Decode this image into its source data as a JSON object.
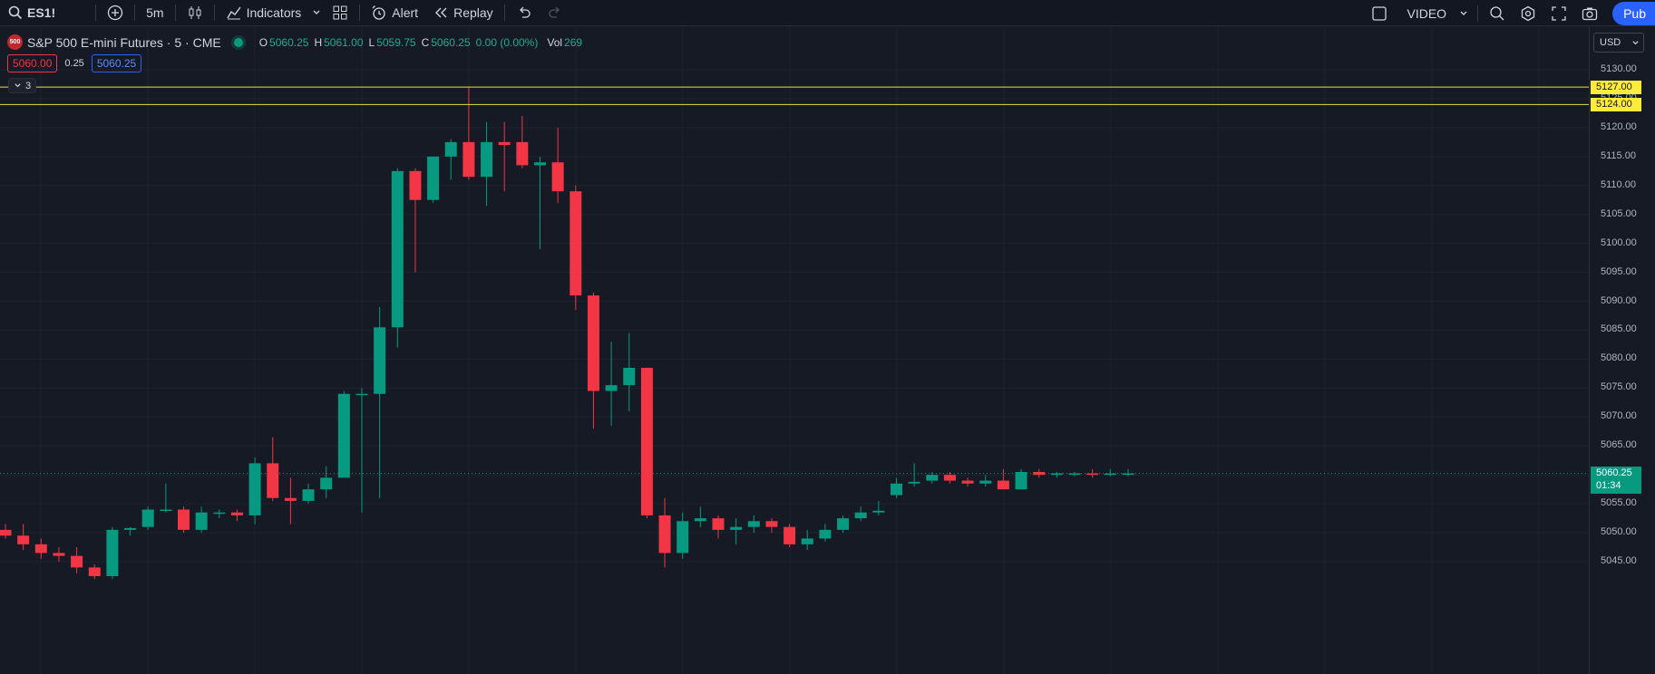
{
  "toolbar": {
    "symbol": "ES1!",
    "interval": "5m",
    "indicators_label": "Indicators",
    "alert_label": "Alert",
    "replay_label": "Replay",
    "layout_name": "VIDEO",
    "publish_label": "Pub"
  },
  "legend": {
    "badge": "500",
    "name": "S&P 500 E-mini Futures · 5 · CME",
    "o_key": "O",
    "o": "5060.25",
    "h_key": "H",
    "h": "5061.00",
    "l_key": "L",
    "l": "5059.75",
    "c_key": "C",
    "c": "5060.25",
    "change": "0.00 (0.00%)",
    "vol_key": "Vol",
    "vol": "269"
  },
  "quote": {
    "bid": "5060.00",
    "spread": "0.25",
    "ask": "5060.25"
  },
  "indicator_group": {
    "count": "3"
  },
  "price_scale": {
    "currency": "USD",
    "ticks": [
      "5130.00",
      "5125.00",
      "5120.00",
      "5115.00",
      "5110.00",
      "5105.00",
      "5100.00",
      "5095.00",
      "5090.00",
      "5085.00",
      "5080.00",
      "5075.00",
      "5070.00",
      "5065.00",
      "5060.00",
      "5055.00",
      "5050.00",
      "5045.00"
    ],
    "lines": [
      {
        "label": "5127.00",
        "price": 5127.0
      },
      {
        "label": "5124.00",
        "price": 5124.0
      }
    ],
    "last_price": "5060.25",
    "countdown": "01:34"
  },
  "colors": {
    "up": "#089981",
    "down": "#f23645",
    "hline": "#e6e03a",
    "background": "#161a25",
    "grid": "#1f2330"
  },
  "candles": [
    [
      5050.5,
      5051.5,
      5049.0,
      5049.5
    ],
    [
      5049.5,
      5051.5,
      5047.0,
      5048.0
    ],
    [
      5048.0,
      5049.0,
      5045.5,
      5046.5
    ],
    [
      5046.5,
      5047.5,
      5045.0,
      5046.0
    ],
    [
      5046.0,
      5047.5,
      5043.0,
      5044.0
    ],
    [
      5044.0,
      5044.5,
      5042.0,
      5042.5
    ],
    [
      5042.5,
      5051.0,
      5042.0,
      5050.5
    ],
    [
      5050.5,
      5051.0,
      5049.5,
      5050.8
    ],
    [
      5051.0,
      5054.5,
      5050.5,
      5054.0
    ],
    [
      5054.0,
      5058.5,
      5053.5,
      5054.0
    ],
    [
      5054.0,
      5054.5,
      5050.0,
      5050.5
    ],
    [
      5050.5,
      5054.5,
      5050.0,
      5053.5
    ],
    [
      5053.5,
      5054.0,
      5052.5,
      5053.5
    ],
    [
      5053.5,
      5054.0,
      5052.0,
      5053.0
    ],
    [
      5053.0,
      5063.0,
      5051.5,
      5062.0
    ],
    [
      5062.0,
      5066.5,
      5055.5,
      5056.0
    ],
    [
      5056.0,
      5059.5,
      5051.5,
      5055.5
    ],
    [
      5055.5,
      5058.5,
      5055.0,
      5057.5
    ],
    [
      5057.5,
      5061.5,
      5056.0,
      5059.5
    ],
    [
      5059.5,
      5074.5,
      5060.0,
      5074.0
    ],
    [
      5074.0,
      5075.0,
      5053.5,
      5074.0
    ],
    [
      5074.0,
      5089.0,
      5056.0,
      5085.5
    ],
    [
      5085.5,
      5113.0,
      5082.0,
      5112.5
    ],
    [
      5112.5,
      5113.0,
      5095.0,
      5107.5
    ],
    [
      5107.5,
      5115.0,
      5107.0,
      5115.0
    ],
    [
      5115.0,
      5118.0,
      5111.0,
      5117.5
    ],
    [
      5117.5,
      5127.0,
      5111.0,
      5111.5
    ],
    [
      5111.5,
      5121.0,
      5106.5,
      5117.5
    ],
    [
      5117.5,
      5121.0,
      5109.0,
      5117.0
    ],
    [
      5117.5,
      5122.0,
      5113.0,
      5113.5
    ],
    [
      5113.5,
      5115.0,
      5099.0,
      5114.0
    ],
    [
      5114.0,
      5120.0,
      5107.0,
      5109.0
    ],
    [
      5109.0,
      5110.0,
      5088.5,
      5091.0
    ],
    [
      5091.0,
      5091.5,
      5068.0,
      5074.5
    ],
    [
      5074.5,
      5083.0,
      5068.5,
      5075.5
    ],
    [
      5075.5,
      5084.5,
      5071.0,
      5078.5
    ],
    [
      5078.5,
      5078.5,
      5052.5,
      5053.0
    ],
    [
      5053.0,
      5056.0,
      5044.0,
      5046.5
    ],
    [
      5046.5,
      5053.5,
      5045.5,
      5052.0
    ],
    [
      5052.0,
      5054.5,
      5051.0,
      5052.5
    ],
    [
      5052.5,
      5053.0,
      5049.0,
      5050.5
    ],
    [
      5050.5,
      5052.5,
      5048.0,
      5051.0
    ],
    [
      5051.0,
      5053.0,
      5050.0,
      5052.0
    ],
    [
      5052.0,
      5052.5,
      5050.0,
      5051.0
    ],
    [
      5051.0,
      5051.5,
      5047.5,
      5048.0
    ],
    [
      5048.0,
      5050.5,
      5047.0,
      5049.0
    ],
    [
      5049.0,
      5051.5,
      5048.5,
      5050.5
    ],
    [
      5050.5,
      5053.0,
      5050.0,
      5052.5
    ],
    [
      5052.5,
      5054.5,
      5052.0,
      5053.5
    ],
    [
      5053.5,
      5055.5,
      5053.0,
      5053.8
    ],
    [
      5056.5,
      5059.5,
      5056.0,
      5058.5
    ],
    [
      5058.5,
      5062.0,
      5058.0,
      5058.8
    ],
    [
      5059.0,
      5060.5,
      5058.5,
      5060.0
    ],
    [
      5060.0,
      5060.5,
      5058.5,
      5059.0
    ],
    [
      5059.0,
      5059.5,
      5058.0,
      5058.5
    ],
    [
      5058.5,
      5060.0,
      5058.0,
      5059.0
    ],
    [
      5059.0,
      5061.0,
      5057.5,
      5057.5
    ],
    [
      5057.5,
      5061.0,
      5057.5,
      5060.5
    ],
    [
      5060.5,
      5061.0,
      5059.5,
      5060.0
    ],
    [
      5060.0,
      5060.5,
      5059.5,
      5060.25
    ],
    [
      5060.25,
      5060.5,
      5059.75,
      5060.25
    ],
    [
      5060.25,
      5061.0,
      5059.5,
      5060.0
    ],
    [
      5060.0,
      5061.0,
      5059.75,
      5060.25
    ],
    [
      5060.25,
      5061.0,
      5059.75,
      5060.25
    ]
  ]
}
